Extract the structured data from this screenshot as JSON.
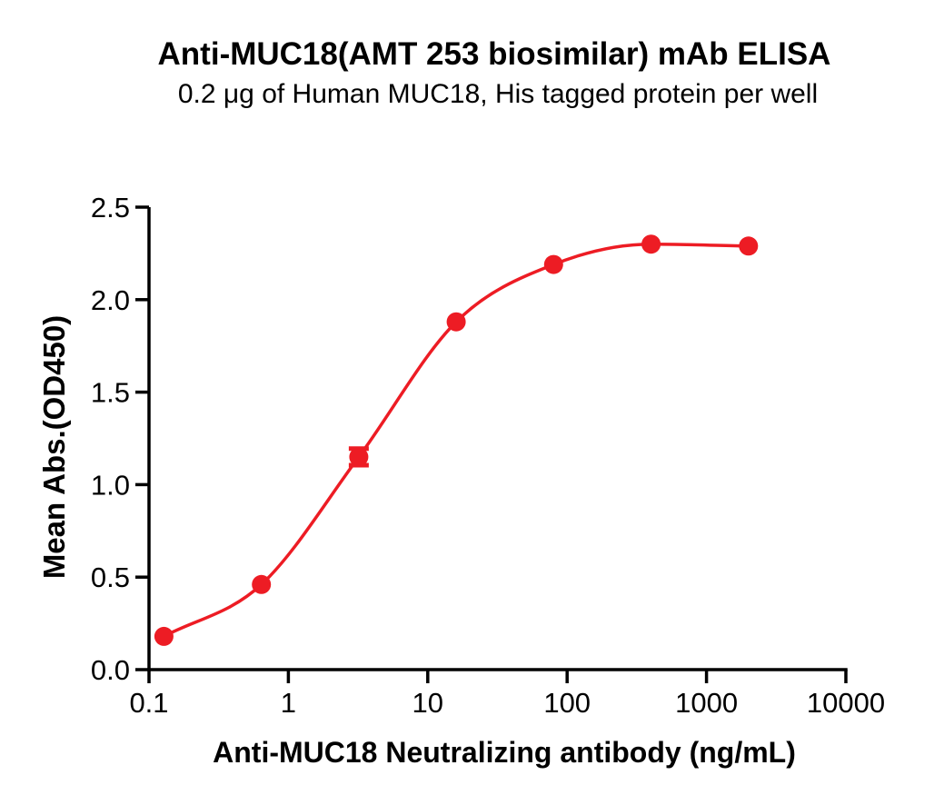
{
  "page": {
    "background_color": "#FFFFFF",
    "text_color": "#000000"
  },
  "chart_data": {
    "type": "line",
    "subtype": "scatter-points-with-sigmoid-fit-curve",
    "title": "Anti-MUC18(AMT 253 biosimilar) mAb ELISA",
    "subtitle": "0.2 μg of Human MUC18, His tagged protein per well",
    "xlabel": "Anti-MUC18 Neutralizing antibody (ng/mL)",
    "ylabel": "Mean Abs.(OD450)",
    "x_scale": "log10",
    "x": [
      0.128,
      0.64,
      3.2,
      16,
      80,
      400,
      2000
    ],
    "y": [
      0.18,
      0.46,
      1.15,
      1.88,
      2.19,
      2.3,
      2.29
    ],
    "y_error": [
      0,
      0,
      0.045,
      0,
      0,
      0,
      0
    ],
    "x_ticks": [
      0.1,
      1,
      10,
      100,
      1000,
      10000
    ],
    "x_tick_labels": [
      "0.1",
      "1",
      "10",
      "100",
      "1000",
      "10000"
    ],
    "y_ticks": [
      0,
      0.5,
      1,
      1.5,
      2,
      2.5
    ],
    "y_tick_labels": [
      "0.0",
      "0.5",
      "1.0",
      "1.5",
      "2.0",
      "2.5"
    ],
    "xlim_log": [
      -1,
      4
    ],
    "ylim": [
      0,
      2.5
    ],
    "grid": false,
    "legend": "none",
    "marker": "filled-circle",
    "series_color": "#ED1C24",
    "axis_color": "#000000",
    "text_color": "#000000"
  }
}
